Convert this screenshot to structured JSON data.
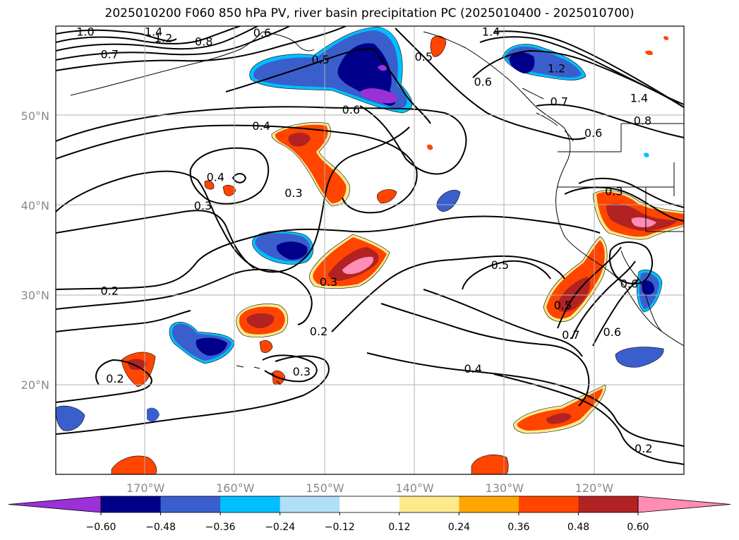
{
  "title": "2025010200 F060 850 hPa PV, river basin precipitation PC (2025010400 - 2025010700)",
  "lon_ticks": [
    {
      "label": "170°W",
      "lon": -170
    },
    {
      "label": "160°W",
      "lon": -160
    },
    {
      "label": "150°W",
      "lon": -150
    },
    {
      "label": "140°W",
      "lon": -140
    },
    {
      "label": "130°W",
      "lon": -130
    },
    {
      "label": "120°W",
      "lon": -120
    }
  ],
  "lat_ticks": [
    {
      "label": "50°N",
      "lat": 50
    },
    {
      "label": "40°N",
      "lat": 40
    },
    {
      "label": "30°N",
      "lat": 30
    },
    {
      "label": "20°N",
      "lat": 20
    }
  ],
  "extent": {
    "lon_min": -180,
    "lon_max": -110,
    "lat_min": 10,
    "lat_max": 60
  },
  "colorbar": {
    "colors": [
      "#9b30d9",
      "#00008b",
      "#3a5fcd",
      "#00bfff",
      "#b0e0f8",
      "#ffffff",
      "#fdea8c",
      "#ffa500",
      "#ff4500",
      "#b22222",
      "#ff8db5"
    ],
    "ticks": [
      "−0.60",
      "−0.48",
      "−0.36",
      "−0.24",
      "−0.12",
      "0.12",
      "0.24",
      "0.36",
      "0.48",
      "0.60"
    ],
    "extend": "both"
  },
  "contour_labels": [
    {
      "text": "1.0",
      "lon": -176.7,
      "lat": 59.4
    },
    {
      "text": "1.4",
      "lon": -169.1,
      "lat": 59.4
    },
    {
      "text": "1.2",
      "lon": -168.0,
      "lat": 58.7
    },
    {
      "text": "0.8",
      "lon": -163.5,
      "lat": 58.3
    },
    {
      "text": "0.6",
      "lon": -157.0,
      "lat": 59.3
    },
    {
      "text": "0.7",
      "lon": -174.0,
      "lat": 56.9
    },
    {
      "text": "0.5",
      "lon": -150.5,
      "lat": 56.3
    },
    {
      "text": "1.4",
      "lon": -131.5,
      "lat": 59.4
    },
    {
      "text": "0.5",
      "lon": -139.0,
      "lat": 56.6
    },
    {
      "text": "0.6",
      "lon": -132.4,
      "lat": 53.8
    },
    {
      "text": "1.2",
      "lon": -124.2,
      "lat": 55.3
    },
    {
      "text": "0.7",
      "lon": -123.9,
      "lat": 51.6
    },
    {
      "text": "1.4",
      "lon": -115.0,
      "lat": 52.0
    },
    {
      "text": "0.8",
      "lon": -114.6,
      "lat": 49.5
    },
    {
      "text": "0.6",
      "lon": -147.1,
      "lat": 50.7
    },
    {
      "text": "0.6",
      "lon": -120.1,
      "lat": 48.1
    },
    {
      "text": "0.4",
      "lon": -157.1,
      "lat": 48.9
    },
    {
      "text": "0.4",
      "lon": -162.2,
      "lat": 43.2
    },
    {
      "text": "0.3",
      "lon": -153.5,
      "lat": 41.4
    },
    {
      "text": "0.3",
      "lon": -163.6,
      "lat": 40.0
    },
    {
      "text": "0.3",
      "lon": -117.8,
      "lat": 41.6
    },
    {
      "text": "0.5",
      "lon": -130.5,
      "lat": 33.4
    },
    {
      "text": "0.6",
      "lon": -116.1,
      "lat": 31.3
    },
    {
      "text": "0.2",
      "lon": -174.0,
      "lat": 30.5
    },
    {
      "text": "0.3",
      "lon": -149.6,
      "lat": 31.5
    },
    {
      "text": "0.5",
      "lon": -123.5,
      "lat": 28.9
    },
    {
      "text": "0.2",
      "lon": -150.7,
      "lat": 26.0
    },
    {
      "text": "0.7",
      "lon": -122.6,
      "lat": 25.6
    },
    {
      "text": "0.6",
      "lon": -118.0,
      "lat": 25.9
    },
    {
      "text": "0.3",
      "lon": -152.6,
      "lat": 21.5
    },
    {
      "text": "0.4",
      "lon": -133.5,
      "lat": 21.8
    },
    {
      "text": "0.2",
      "lon": -173.4,
      "lat": 20.7
    },
    {
      "text": "0.2",
      "lon": -114.5,
      "lat": 12.9
    }
  ]
}
